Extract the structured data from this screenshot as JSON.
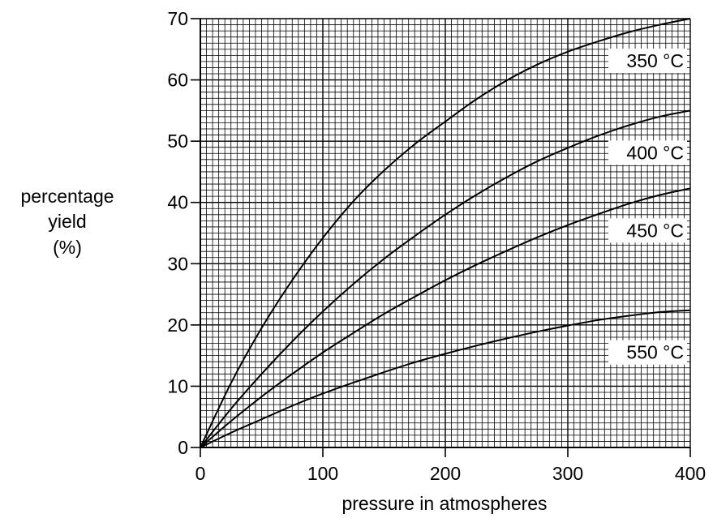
{
  "chart_data": {
    "type": "line",
    "xlabel": "pressure in atmospheres",
    "ylabel_lines": [
      "percentage",
      "yield",
      "(%)"
    ],
    "xlim": [
      0,
      400
    ],
    "ylim": [
      0,
      70
    ],
    "x_ticks": [
      "0",
      "100",
      "200",
      "300",
      "400"
    ],
    "y_ticks": [
      "0",
      "10",
      "20",
      "30",
      "40",
      "50",
      "60",
      "70"
    ],
    "grid": true,
    "series": [
      {
        "name": "350 °C",
        "x": [
          0,
          25,
          50,
          75,
          100,
          125,
          150,
          175,
          200,
          225,
          250,
          275,
          300,
          325,
          350,
          375,
          400
        ],
        "y": [
          0,
          10.5,
          19.5,
          27.3,
          34.2,
          40.2,
          45.2,
          49.5,
          53.2,
          56.8,
          59.9,
          62.5,
          64.6,
          66.3,
          67.8,
          69.0,
          70.0
        ]
      },
      {
        "name": "400 °C",
        "x": [
          0,
          25,
          50,
          75,
          100,
          125,
          150,
          175,
          200,
          225,
          250,
          275,
          300,
          325,
          350,
          375,
          400
        ],
        "y": [
          0,
          6.3,
          12.0,
          17.3,
          22.2,
          26.7,
          30.8,
          34.5,
          38.0,
          41.2,
          44.1,
          46.7,
          48.9,
          50.9,
          52.6,
          54.0,
          55.0
        ]
      },
      {
        "name": "450 °C",
        "x": [
          0,
          25,
          50,
          75,
          100,
          125,
          150,
          175,
          200,
          225,
          250,
          275,
          300,
          325,
          350,
          375,
          400
        ],
        "y": [
          0,
          4.3,
          8.3,
          12.0,
          15.5,
          18.7,
          21.8,
          24.6,
          27.3,
          29.8,
          32.1,
          34.3,
          36.3,
          38.1,
          39.8,
          41.2,
          42.3
        ]
      },
      {
        "name": "550 °C",
        "x": [
          0,
          25,
          50,
          75,
          100,
          125,
          150,
          175,
          200,
          225,
          250,
          275,
          300,
          325,
          350,
          375,
          400
        ],
        "y": [
          0,
          2.4,
          4.6,
          6.8,
          8.8,
          10.6,
          12.3,
          13.9,
          15.3,
          16.6,
          17.8,
          18.9,
          19.9,
          20.8,
          21.5,
          22.1,
          22.4
        ]
      }
    ]
  }
}
